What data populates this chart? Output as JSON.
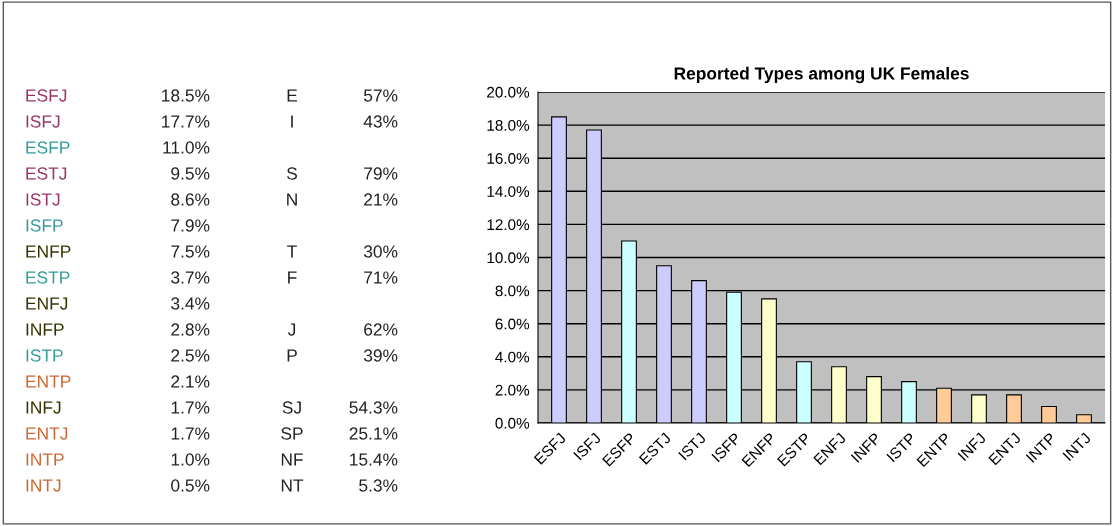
{
  "chart_data": [
    {
      "type": "other",
      "annotations": [
        "ESFJ 18.5%",
        "ISFJ 17.7%",
        "ESFP 11.0%",
        "ESTJ 9.5%",
        "ISTJ 8.6%",
        "ISFP 7.9%",
        "ENFP 7.5%",
        "ESTP 3.7%",
        "ENFJ 3.4%",
        "INFP 2.8%",
        "ISTP 2.5%",
        "ENTP 2.1%",
        "INFJ 1.7%",
        "ENTJ 1.7%",
        "INTP 1.0%",
        "INTJ 0.5%",
        "E 57%",
        "I 43%",
        "S 79%",
        "N 21%",
        "T 30%",
        "F 71%",
        "J 62%",
        "P 39%",
        "SJ 54.3%",
        "SP 25.1%",
        "NF 15.4%",
        "NT 5.3%"
      ]
    },
    {
      "type": "bar",
      "title": "Reported Types among UK Females",
      "categories": [
        "ESFJ",
        "ISFJ",
        "ESFP",
        "ESTJ",
        "ISTJ",
        "ISFP",
        "ENFP",
        "ESTP",
        "ENFJ",
        "INFP",
        "ISTP",
        "ENTP",
        "INFJ",
        "ENTJ",
        "INTP",
        "INTJ"
      ],
      "values": [
        18.5,
        17.7,
        11.0,
        9.5,
        8.6,
        7.9,
        7.5,
        3.7,
        3.4,
        2.8,
        2.5,
        2.1,
        1.7,
        1.7,
        1.0,
        0.5
      ],
      "colors": [
        "#ccccff",
        "#ccccff",
        "#ccffff",
        "#ccccff",
        "#ccccff",
        "#ccffff",
        "#ffffcc",
        "#ccffff",
        "#ffffcc",
        "#ffffcc",
        "#ccffff",
        "#ffcc99",
        "#ffffcc",
        "#ffcc99",
        "#ffcc99",
        "#ffcc99"
      ],
      "ylim": [
        0,
        20
      ],
      "yticks": [
        {
          "value": 0,
          "label": "0.0%"
        },
        {
          "value": 2,
          "label": "2.0%"
        },
        {
          "value": 4,
          "label": "4.0%"
        },
        {
          "value": 6,
          "label": "6.0%"
        },
        {
          "value": 8,
          "label": "8.0%"
        },
        {
          "value": 10,
          "label": "10.0%"
        },
        {
          "value": 12,
          "label": "12.0%"
        },
        {
          "value": 14,
          "label": "14.0%"
        },
        {
          "value": 16,
          "label": "16.0%"
        },
        {
          "value": 18,
          "label": "18.0%"
        },
        {
          "value": 20,
          "label": "20.0%"
        }
      ],
      "grid": "y"
    }
  ]
}
